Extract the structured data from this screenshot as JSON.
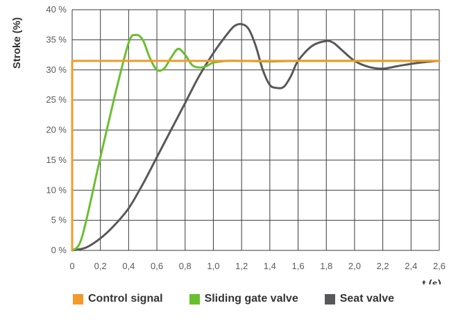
{
  "chart_data": {
    "type": "line",
    "xlabel": "t (s)",
    "ylabel": "Stroke (%)",
    "xlim": [
      0,
      2.6
    ],
    "ylim": [
      0,
      40
    ],
    "grid": true,
    "legend_position": "bottom",
    "x_ticks": [
      "0",
      "0,2",
      "0,4",
      "0,6",
      "0,8",
      "1,0",
      "1,2",
      "1,4",
      "1,6",
      "1,8",
      "2,0",
      "2,2",
      "2,4",
      "2,6"
    ],
    "y_ticks": [
      "0 %",
      "5 %",
      "10 %",
      "15 %",
      "20 %",
      "25 %",
      "30 %",
      "35 %",
      "40 %"
    ],
    "series": [
      {
        "name": "Control signal",
        "color": "#f39a2b",
        "x": [
          0,
          0,
          2.6
        ],
        "y": [
          0,
          31.5,
          31.5
        ]
      },
      {
        "name": "Sliding gate valve",
        "color": "#6abf2e",
        "x": [
          0,
          0.05,
          0.1,
          0.2,
          0.3,
          0.4,
          0.45,
          0.5,
          0.55,
          0.6,
          0.65,
          0.7,
          0.75,
          0.8,
          0.85,
          0.9,
          0.95,
          1.0,
          1.1,
          1.2,
          1.4,
          1.6,
          2.0,
          2.6
        ],
        "y": [
          0,
          1,
          5,
          15.5,
          25.5,
          34.5,
          35.8,
          35,
          32,
          30,
          30.2,
          32,
          33.5,
          32.5,
          30.8,
          30.4,
          30.6,
          31.2,
          31.5,
          31.5,
          31.4,
          31.5,
          31.5,
          31.5
        ]
      },
      {
        "name": "Seat valve",
        "color": "#58585a",
        "x": [
          0,
          0.1,
          0.2,
          0.3,
          0.4,
          0.5,
          0.6,
          0.7,
          0.8,
          0.9,
          1.0,
          1.1,
          1.15,
          1.2,
          1.25,
          1.3,
          1.35,
          1.4,
          1.45,
          1.5,
          1.55,
          1.6,
          1.7,
          1.8,
          1.85,
          1.9,
          2.0,
          2.1,
          2.2,
          2.3,
          2.4,
          2.5,
          2.6
        ],
        "y": [
          0,
          0.5,
          2,
          4.2,
          7,
          11,
          15.5,
          20,
          24.5,
          29,
          32.8,
          36,
          37.3,
          37.6,
          36.8,
          34,
          30,
          27.5,
          27,
          27.2,
          29,
          31.5,
          34,
          34.8,
          34.5,
          33.5,
          31.5,
          30.5,
          30.2,
          30.6,
          31,
          31.3,
          31.5
        ]
      }
    ]
  }
}
